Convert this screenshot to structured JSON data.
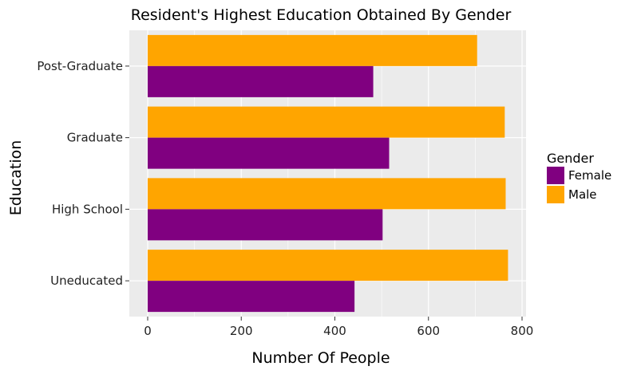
{
  "chart_data": {
    "type": "bar",
    "orientation": "horizontal",
    "title": "Resident's Highest Education Obtained By Gender",
    "xlabel": "Number Of People",
    "ylabel": "Education",
    "categories": [
      "Post-Graduate",
      "Graduate",
      "High School",
      "Uneducated"
    ],
    "series": [
      {
        "name": "Female",
        "color": "#800080",
        "values": [
          482,
          516,
          502,
          442
        ]
      },
      {
        "name": "Male",
        "color": "#FFA500",
        "values": [
          704,
          763,
          765,
          770
        ]
      }
    ],
    "xlim": [
      0,
      800
    ],
    "xticks": [
      0,
      200,
      400,
      600,
      800
    ],
    "grid": true,
    "legend": {
      "title": "Gender",
      "position": "right",
      "entries": [
        "Female",
        "Male"
      ]
    },
    "panel_background": "#EBEBEB",
    "grid_color": "#FFFFFF"
  }
}
